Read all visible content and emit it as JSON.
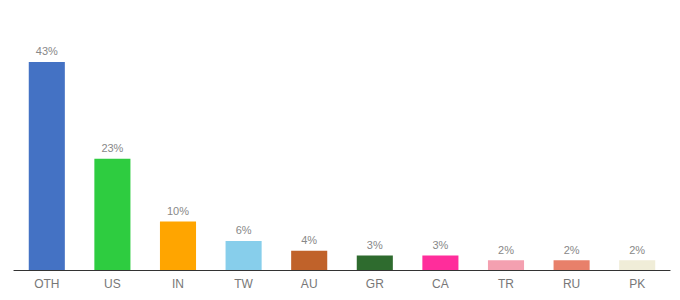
{
  "chart_data": {
    "type": "bar",
    "categories": [
      "OTH",
      "US",
      "IN",
      "TW",
      "AU",
      "GR",
      "CA",
      "TR",
      "RU",
      "PK"
    ],
    "values": [
      43,
      23,
      10,
      6,
      4,
      3,
      3,
      2,
      2,
      2
    ],
    "value_labels": [
      "43%",
      "23%",
      "10%",
      "6%",
      "4%",
      "3%",
      "3%",
      "2%",
      "2%",
      "2%"
    ],
    "colors": [
      "#4472C4",
      "#2ECC40",
      "#FFA500",
      "#87CEEB",
      "#C0622A",
      "#2E6B2E",
      "#FF2D9B",
      "#F4A0B0",
      "#E8806A",
      "#F0EDD8"
    ],
    "ylim": [
      0,
      50
    ],
    "data_labels": true,
    "tick_labels": "x",
    "grid": false
  }
}
